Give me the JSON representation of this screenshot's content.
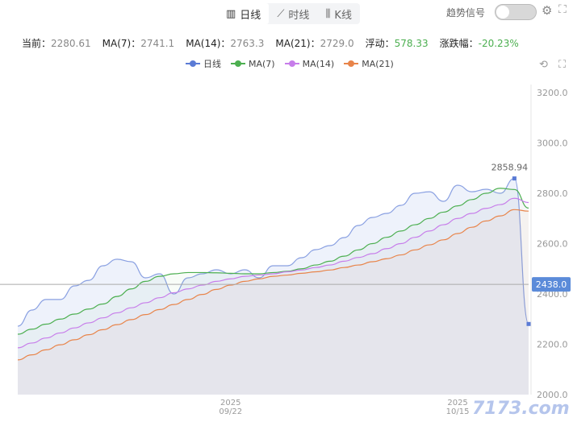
{
  "tabs": [
    {
      "label": "日线",
      "icon": "bar-chart-icon",
      "active": true
    },
    {
      "label": "时线",
      "icon": "line-chart-icon",
      "active": false
    },
    {
      "label": "K线",
      "icon": "candlestick-icon",
      "active": false
    }
  ],
  "trend_signal": {
    "label": "趋势信号",
    "on": false
  },
  "stats": {
    "current_label": "当前：",
    "current": "2280.61",
    "ma7_label": "MA(7)：",
    "ma7": "2741.1",
    "ma14_label": "MA(14)：",
    "ma14": "2763.3",
    "ma21_label": "MA(21)：",
    "ma21": "2729.0",
    "float_label": "浮动：",
    "float": "578.33",
    "change_label": "涨跌幅：",
    "change": "-20.23%"
  },
  "chart_data": {
    "type": "line",
    "legend": [
      "日线",
      "MA(7)",
      "MA(14)",
      "MA(21)"
    ],
    "legend_position": "top",
    "ylim": [
      2000,
      3200
    ],
    "yticks": [
      "2000.0",
      "2200.0",
      "2400.0",
      "2600.0",
      "2800.0",
      "3000.0",
      "3200.0"
    ],
    "xticks": [
      {
        "index": 15,
        "label": [
          "2025",
          "09/22"
        ]
      },
      {
        "index": 31,
        "label": [
          "2025",
          "10/15"
        ]
      }
    ],
    "reference_line": {
      "value": 2438.0,
      "label": "2438.0"
    },
    "peak_label": "2858.94",
    "colors": {
      "daily": "#5b7bd5",
      "ma7": "#4caf50",
      "ma14": "#c77dea",
      "ma21": "#e8844a"
    },
    "series": [
      {
        "name": "日线",
        "values": [
          2272,
          2336,
          2378,
          2378,
          2432,
          2454,
          2512,
          2538,
          2528,
          2464,
          2480,
          2400,
          2464,
          2480,
          2496,
          2480,
          2496,
          2464,
          2512,
          2512,
          2544,
          2576,
          2592,
          2624,
          2672,
          2704,
          2720,
          2752,
          2800,
          2806,
          2768,
          2832,
          2806,
          2816,
          2800,
          2858.94,
          2280.61
        ]
      },
      {
        "name": "MA(7)",
        "values": [
          2240,
          2260,
          2280,
          2300,
          2320,
          2340,
          2360,
          2390,
          2420,
          2450,
          2470,
          2480,
          2485,
          2485,
          2484,
          2482,
          2480,
          2480,
          2485,
          2490,
          2500,
          2515,
          2530,
          2550,
          2575,
          2600,
          2625,
          2650,
          2675,
          2700,
          2725,
          2750,
          2775,
          2800,
          2820,
          2815,
          2741.1
        ]
      },
      {
        "name": "MA(14)",
        "values": [
          2186,
          2205,
          2225,
          2245,
          2265,
          2285,
          2305,
          2325,
          2345,
          2365,
          2385,
          2405,
          2420,
          2435,
          2450,
          2460,
          2470,
          2475,
          2480,
          2488,
          2495,
          2505,
          2515,
          2530,
          2545,
          2560,
          2580,
          2600,
          2625,
          2650,
          2675,
          2700,
          2720,
          2740,
          2755,
          2780,
          2763.3
        ]
      },
      {
        "name": "MA(21)",
        "values": [
          2138,
          2158,
          2178,
          2198,
          2218,
          2238,
          2258,
          2278,
          2298,
          2318,
          2338,
          2358,
          2378,
          2398,
          2418,
          2435,
          2450,
          2460,
          2470,
          2475,
          2482,
          2488,
          2495,
          2505,
          2515,
          2528,
          2540,
          2555,
          2575,
          2595,
          2615,
          2640,
          2665,
          2690,
          2710,
          2735,
          2729.0
        ]
      }
    ]
  },
  "watermark": "7173.com"
}
